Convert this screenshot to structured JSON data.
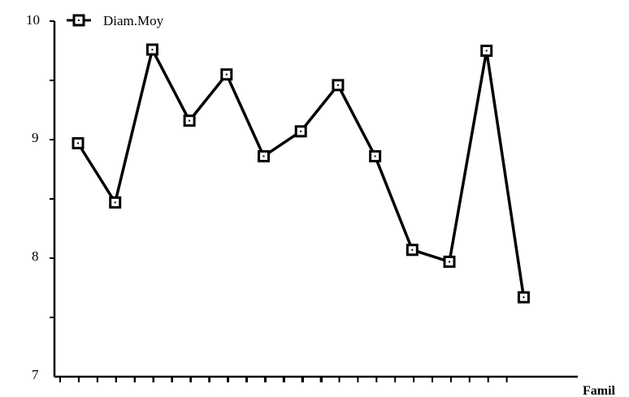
{
  "chart_data": {
    "type": "line",
    "title": "",
    "xlabel": "Famil",
    "ylabel": "",
    "ylim": [
      7,
      10
    ],
    "yticks": [
      "7",
      "8",
      "9",
      "10"
    ],
    "grid": false,
    "legend": {
      "position": "top-left",
      "entries": [
        "Diam.Moy"
      ]
    },
    "series": [
      {
        "name": "Diam.Moy",
        "color": "#000000",
        "marker": "hollow-square-with-dot",
        "values": [
          8.97,
          8.47,
          9.76,
          9.16,
          9.55,
          8.86,
          9.07,
          9.46,
          8.86,
          8.07,
          7.97,
          9.75,
          7.67
        ]
      }
    ]
  }
}
